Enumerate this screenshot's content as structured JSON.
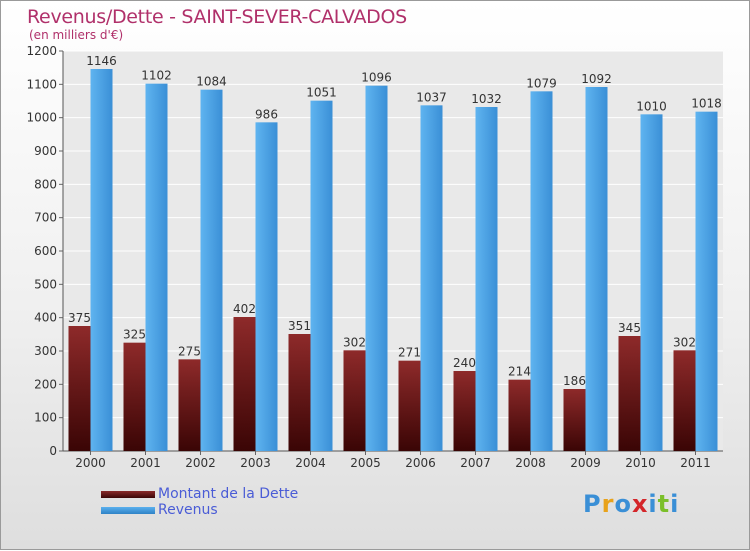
{
  "chart_data": {
    "type": "bar",
    "title": "Revenus/Dette - SAINT-SEVER-CALVADOS",
    "subtitle": "(en milliers d'€)",
    "xlabel": "",
    "ylabel": "",
    "ylim": [
      0,
      1200
    ],
    "yticks": [
      0,
      100,
      200,
      300,
      400,
      500,
      600,
      700,
      800,
      900,
      1000,
      1100,
      1200
    ],
    "grid": true,
    "legend_position": "bottom-left",
    "categories": [
      "2000",
      "2001",
      "2002",
      "2003",
      "2004",
      "2005",
      "2006",
      "2007",
      "2008",
      "2009",
      "2010",
      "2011"
    ],
    "series": [
      {
        "name": "Montant de la Dette",
        "color": "#7a1e1e",
        "values": [
          375,
          325,
          275,
          402,
          351,
          302,
          271,
          240,
          214,
          186,
          345,
          302
        ]
      },
      {
        "name": "Revenus",
        "color": "#4aa3e3",
        "values": [
          1146,
          1102,
          1084,
          986,
          1051,
          1096,
          1037,
          1032,
          1079,
          1092,
          1010,
          1018
        ]
      }
    ]
  },
  "logo": {
    "text": "Proxiti",
    "colors": [
      "#3a8fd6",
      "#e8a21a",
      "#3a8fd6",
      "#d4262a",
      "#3a8fd6",
      "#7bbf2a",
      "#3a8fd6"
    ]
  }
}
